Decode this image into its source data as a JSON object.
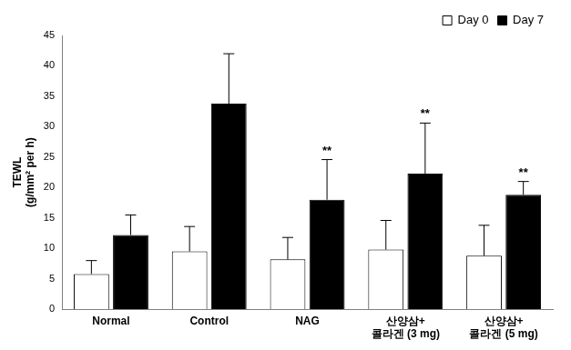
{
  "chart_data": {
    "type": "bar",
    "y_label": [
      "TEWL",
      "(g/mm² per h)"
    ],
    "categories": [
      "Normal",
      "Control",
      "NAG",
      [
        "산양삼+",
        "콜라겐 (3 mg)"
      ],
      [
        "산양삼+",
        "콜라겐 (5 mg)"
      ]
    ],
    "series": [
      {
        "name": "Day 0",
        "color": "#ffffff",
        "values": [
          5.8,
          9.5,
          8.2,
          9.8,
          8.8
        ],
        "errors": [
          2.2,
          4.1,
          3.6,
          4.8,
          5.0
        ]
      },
      {
        "name": "Day 7",
        "color": "#000000",
        "values": [
          12.2,
          33.8,
          18.0,
          22.3,
          18.8
        ],
        "errors": [
          3.3,
          8.2,
          6.6,
          8.3,
          2.2
        ],
        "significance": [
          null,
          null,
          "**",
          "**",
          "**"
        ]
      }
    ],
    "ylim": [
      0,
      45
    ],
    "yticks": [
      0,
      5,
      10,
      15,
      20,
      25,
      30,
      35,
      40,
      45
    ],
    "grid": false,
    "legend": "upper right"
  }
}
